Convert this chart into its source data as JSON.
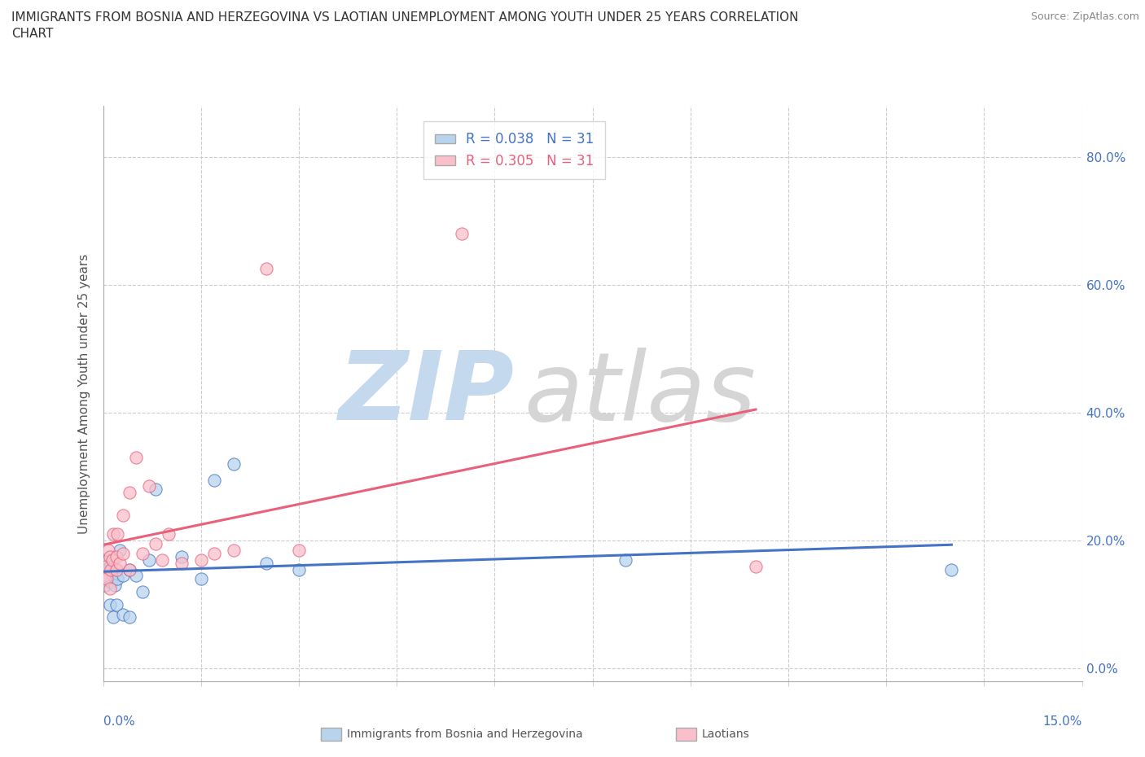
{
  "title_line1": "IMMIGRANTS FROM BOSNIA AND HERZEGOVINA VS LAOTIAN UNEMPLOYMENT AMONG YOUTH UNDER 25 YEARS CORRELATION",
  "title_line2": "CHART",
  "source": "Source: ZipAtlas.com",
  "ylabel": "Unemployment Among Youth under 25 years",
  "xlim": [
    0.0,
    0.15
  ],
  "ylim": [
    -0.02,
    0.88
  ],
  "yticks": [
    0.0,
    0.2,
    0.4,
    0.6,
    0.8
  ],
  "xtick_count": 11,
  "color_bosnia": "#b8d4ed",
  "color_laotian": "#f9c0cb",
  "line_color_bosnia": "#4472c4",
  "line_color_laotian": "#e8607a",
  "watermark_zip_color": "#d0dff0",
  "watermark_atlas_color": "#d8d8d8",
  "bosnia_x": [
    0.0002,
    0.0003,
    0.0005,
    0.0007,
    0.0008,
    0.001,
    0.001,
    0.0012,
    0.0015,
    0.0015,
    0.0018,
    0.002,
    0.002,
    0.0022,
    0.0025,
    0.003,
    0.003,
    0.004,
    0.004,
    0.005,
    0.006,
    0.007,
    0.008,
    0.012,
    0.015,
    0.017,
    0.02,
    0.025,
    0.03,
    0.08,
    0.13
  ],
  "bosnia_y": [
    0.14,
    0.13,
    0.155,
    0.145,
    0.17,
    0.1,
    0.16,
    0.135,
    0.08,
    0.145,
    0.13,
    0.155,
    0.1,
    0.14,
    0.185,
    0.145,
    0.085,
    0.155,
    0.08,
    0.145,
    0.12,
    0.17,
    0.28,
    0.175,
    0.14,
    0.295,
    0.32,
    0.165,
    0.155,
    0.17,
    0.155
  ],
  "laotian_x": [
    0.0002,
    0.0004,
    0.0006,
    0.0008,
    0.001,
    0.001,
    0.0012,
    0.0014,
    0.0016,
    0.002,
    0.002,
    0.0022,
    0.0025,
    0.003,
    0.003,
    0.004,
    0.004,
    0.005,
    0.006,
    0.007,
    0.008,
    0.009,
    0.01,
    0.012,
    0.015,
    0.017,
    0.02,
    0.025,
    0.03,
    0.055,
    0.1
  ],
  "laotian_y": [
    0.145,
    0.16,
    0.14,
    0.185,
    0.125,
    0.175,
    0.155,
    0.17,
    0.21,
    0.155,
    0.175,
    0.21,
    0.165,
    0.18,
    0.24,
    0.155,
    0.275,
    0.33,
    0.18,
    0.285,
    0.195,
    0.17,
    0.21,
    0.165,
    0.17,
    0.18,
    0.185,
    0.625,
    0.185,
    0.68,
    0.16
  ]
}
